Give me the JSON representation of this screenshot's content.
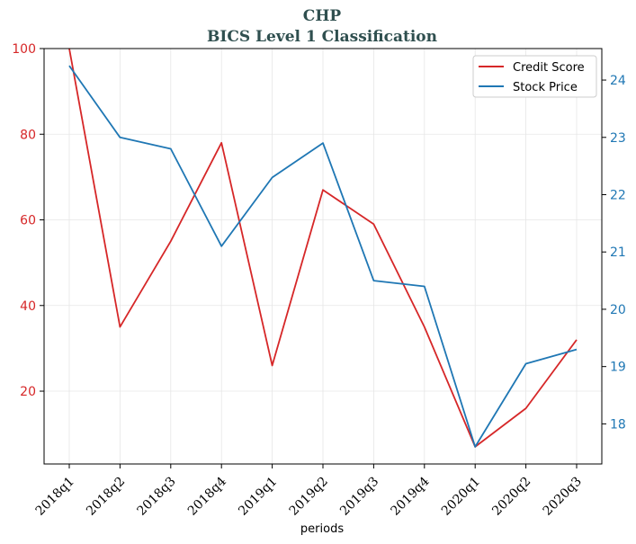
{
  "chart_data": {
    "type": "line",
    "title": "CHP",
    "subtitle": "BICS Level 1 Classification",
    "xlabel": "periods",
    "categories": [
      "2018q1",
      "2018q2",
      "2018q3",
      "2018q4",
      "2019q1",
      "2019q2",
      "2019q3",
      "2019q4",
      "2020q1",
      "2020q2",
      "2020q3"
    ],
    "series": [
      {
        "name": "Credit Score",
        "axis": "left",
        "color": "#d62728",
        "values": [
          100,
          35,
          55,
          78,
          26,
          67,
          59,
          35,
          7,
          16,
          32
        ]
      },
      {
        "name": "Stock Price",
        "axis": "right",
        "color": "#1f77b4",
        "values": [
          24.25,
          23.0,
          22.8,
          21.1,
          22.3,
          22.9,
          20.5,
          20.4,
          17.6,
          19.05,
          19.3
        ]
      }
    ],
    "ylim_left": [
      3,
      100
    ],
    "ylim_right": [
      17.3,
      24.55
    ],
    "yticks_left": [
      20,
      40,
      60,
      80,
      100
    ],
    "yticks_right": [
      18,
      19,
      20,
      21,
      22,
      23,
      24
    ],
    "left_axis_color": "#d62728",
    "right_axis_color": "#1f77b4",
    "grid": true,
    "legend_position": "upper-right"
  }
}
